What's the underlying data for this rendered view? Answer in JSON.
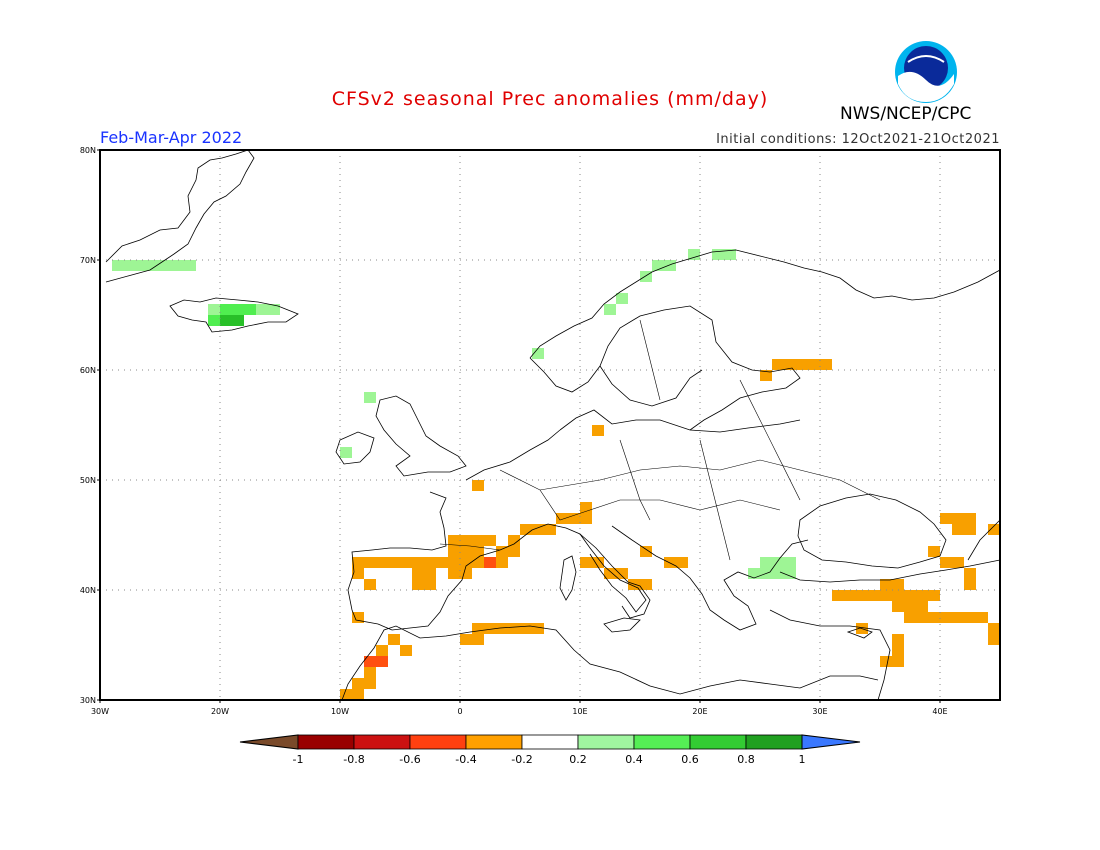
{
  "header": {
    "title": "CFSv2 seasonal Prec anomalies (mm/day)",
    "period": "Feb-Mar-Apr 2022",
    "initial_conditions": "Initial conditions: 12Oct2021-21Oct2021",
    "agency": "NWS/NCEP/CPC",
    "logo_text": "NOAA"
  },
  "map": {
    "lon_range": [
      -30,
      45
    ],
    "lat_range": [
      30,
      80
    ],
    "lat_labels": [
      "80N",
      "70N",
      "60N",
      "50N",
      "40N",
      "30N"
    ],
    "lon_labels": [
      "30W",
      "20W",
      "10W",
      "0",
      "10E",
      "20E",
      "30E",
      "40E"
    ],
    "colors": {
      "neg_0.2": "#f8a000",
      "neg_0.4": "#ff5010",
      "neg_0.6": "#dd1515",
      "pos_0.2": "#9ef595",
      "pos_0.4": "#50ee50",
      "pos_0.6": "#28c028"
    },
    "anomaly_cells": [
      {
        "lon": -29,
        "lat": 69,
        "cls": "pos_0.2"
      },
      {
        "lon": -28,
        "lat": 69,
        "cls": "pos_0.2"
      },
      {
        "lon": -27,
        "lat": 69,
        "cls": "pos_0.2"
      },
      {
        "lon": -26,
        "lat": 69,
        "cls": "pos_0.2"
      },
      {
        "lon": -25,
        "lat": 69,
        "cls": "pos_0.2"
      },
      {
        "lon": -24,
        "lat": 69,
        "cls": "pos_0.2"
      },
      {
        "lon": -23,
        "lat": 69,
        "cls": "pos_0.2"
      },
      {
        "lon": -21,
        "lat": 64,
        "cls": "pos_0.4"
      },
      {
        "lon": -20,
        "lat": 64,
        "cls": "pos_0.6"
      },
      {
        "lon": -19,
        "lat": 64,
        "cls": "pos_0.6"
      },
      {
        "lon": -20,
        "lat": 65,
        "cls": "pos_0.4"
      },
      {
        "lon": -19,
        "lat": 65,
        "cls": "pos_0.4"
      },
      {
        "lon": -18,
        "lat": 65,
        "cls": "pos_0.4"
      },
      {
        "lon": -17,
        "lat": 65,
        "cls": "pos_0.2"
      },
      {
        "lon": -16,
        "lat": 65,
        "cls": "pos_0.2"
      },
      {
        "lon": -21,
        "lat": 65,
        "cls": "pos_0.2"
      },
      {
        "lon": 15,
        "lat": 68,
        "cls": "pos_0.2"
      },
      {
        "lon": 16,
        "lat": 69,
        "cls": "pos_0.2"
      },
      {
        "lon": 17,
        "lat": 69,
        "cls": "pos_0.2"
      },
      {
        "lon": 19,
        "lat": 70,
        "cls": "pos_0.2"
      },
      {
        "lon": 21,
        "lat": 70,
        "cls": "pos_0.2"
      },
      {
        "lon": 22,
        "lat": 70,
        "cls": "pos_0.2"
      },
      {
        "lon": 13,
        "lat": 66,
        "cls": "pos_0.2"
      },
      {
        "lon": 12,
        "lat": 65,
        "cls": "pos_0.2"
      },
      {
        "lon": 6,
        "lat": 61,
        "cls": "pos_0.2"
      },
      {
        "lon": -8,
        "lat": 57,
        "cls": "pos_0.2"
      },
      {
        "lon": -10,
        "lat": 52,
        "cls": "pos_0.2"
      },
      {
        "lon": 24,
        "lat": 41,
        "cls": "pos_0.2"
      },
      {
        "lon": 25,
        "lat": 41,
        "cls": "pos_0.2"
      },
      {
        "lon": 26,
        "lat": 41,
        "cls": "pos_0.2"
      },
      {
        "lon": 27,
        "lat": 41,
        "cls": "pos_0.2"
      },
      {
        "lon": 25,
        "lat": 42,
        "cls": "pos_0.2"
      },
      {
        "lon": 26,
        "lat": 42,
        "cls": "pos_0.2"
      },
      {
        "lon": 27,
        "lat": 42,
        "cls": "pos_0.2"
      },
      {
        "lon": 26,
        "lat": 60,
        "cls": "neg_0.2"
      },
      {
        "lon": 27,
        "lat": 60,
        "cls": "neg_0.2"
      },
      {
        "lon": 28,
        "lat": 60,
        "cls": "neg_0.2"
      },
      {
        "lon": 29,
        "lat": 60,
        "cls": "neg_0.2"
      },
      {
        "lon": 30,
        "lat": 60,
        "cls": "neg_0.2"
      },
      {
        "lon": 25,
        "lat": 59,
        "cls": "neg_0.2"
      },
      {
        "lon": 11,
        "lat": 54,
        "cls": "neg_0.2"
      },
      {
        "lon": 1,
        "lat": 49,
        "cls": "neg_0.2"
      },
      {
        "lon": -1,
        "lat": 44,
        "cls": "neg_0.2"
      },
      {
        "lon": 0,
        "lat": 44,
        "cls": "neg_0.2"
      },
      {
        "lon": 1,
        "lat": 44,
        "cls": "neg_0.2"
      },
      {
        "lon": 2,
        "lat": 44,
        "cls": "neg_0.2"
      },
      {
        "lon": 4,
        "lat": 44,
        "cls": "neg_0.2"
      },
      {
        "lon": 5,
        "lat": 45,
        "cls": "neg_0.2"
      },
      {
        "lon": 6,
        "lat": 45,
        "cls": "neg_0.2"
      },
      {
        "lon": 7,
        "lat": 45,
        "cls": "neg_0.2"
      },
      {
        "lon": 8,
        "lat": 46,
        "cls": "neg_0.2"
      },
      {
        "lon": 9,
        "lat": 46,
        "cls": "neg_0.2"
      },
      {
        "lon": 10,
        "lat": 46,
        "cls": "neg_0.2"
      },
      {
        "lon": 10,
        "lat": 47,
        "cls": "neg_0.2"
      },
      {
        "lon": -1,
        "lat": 43,
        "cls": "neg_0.2"
      },
      {
        "lon": 0,
        "lat": 43,
        "cls": "neg_0.2"
      },
      {
        "lon": 1,
        "lat": 43,
        "cls": "neg_0.2"
      },
      {
        "lon": 3,
        "lat": 43,
        "cls": "neg_0.2"
      },
      {
        "lon": 4,
        "lat": 43,
        "cls": "neg_0.2"
      },
      {
        "lon": 2,
        "lat": 42,
        "cls": "neg_0.4"
      },
      {
        "lon": -9,
        "lat": 42,
        "cls": "neg_0.2"
      },
      {
        "lon": -8,
        "lat": 42,
        "cls": "neg_0.2"
      },
      {
        "lon": -7,
        "lat": 42,
        "cls": "neg_0.2"
      },
      {
        "lon": -6,
        "lat": 42,
        "cls": "neg_0.2"
      },
      {
        "lon": -5,
        "lat": 42,
        "cls": "neg_0.2"
      },
      {
        "lon": -4,
        "lat": 42,
        "cls": "neg_0.2"
      },
      {
        "lon": -3,
        "lat": 42,
        "cls": "neg_0.2"
      },
      {
        "lon": -2,
        "lat": 42,
        "cls": "neg_0.2"
      },
      {
        "lon": -1,
        "lat": 42,
        "cls": "neg_0.2"
      },
      {
        "lon": 0,
        "lat": 42,
        "cls": "neg_0.2"
      },
      {
        "lon": 1,
        "lat": 42,
        "cls": "neg_0.2"
      },
      {
        "lon": 3,
        "lat": 42,
        "cls": "neg_0.2"
      },
      {
        "lon": -4,
        "lat": 41,
        "cls": "neg_0.2"
      },
      {
        "lon": -3,
        "lat": 41,
        "cls": "neg_0.2"
      },
      {
        "lon": -1,
        "lat": 41,
        "cls": "neg_0.2"
      },
      {
        "lon": 0,
        "lat": 41,
        "cls": "neg_0.2"
      },
      {
        "lon": -9,
        "lat": 41,
        "cls": "neg_0.2"
      },
      {
        "lon": -8,
        "lat": 40,
        "cls": "neg_0.2"
      },
      {
        "lon": -4,
        "lat": 40,
        "cls": "neg_0.2"
      },
      {
        "lon": -3,
        "lat": 40,
        "cls": "neg_0.2"
      },
      {
        "lon": -9,
        "lat": 37,
        "cls": "neg_0.2"
      },
      {
        "lon": 10,
        "lat": 42,
        "cls": "neg_0.2"
      },
      {
        "lon": 11,
        "lat": 42,
        "cls": "neg_0.2"
      },
      {
        "lon": 12,
        "lat": 41,
        "cls": "neg_0.2"
      },
      {
        "lon": 13,
        "lat": 41,
        "cls": "neg_0.2"
      },
      {
        "lon": 14,
        "lat": 40,
        "cls": "neg_0.2"
      },
      {
        "lon": 15,
        "lat": 40,
        "cls": "neg_0.2"
      },
      {
        "lon": 15,
        "lat": 43,
        "cls": "neg_0.2"
      },
      {
        "lon": 17,
        "lat": 42,
        "cls": "neg_0.2"
      },
      {
        "lon": 18,
        "lat": 42,
        "cls": "neg_0.2"
      },
      {
        "lon": 0,
        "lat": 35,
        "cls": "neg_0.2"
      },
      {
        "lon": 1,
        "lat": 35,
        "cls": "neg_0.2"
      },
      {
        "lon": 1,
        "lat": 36,
        "cls": "neg_0.2"
      },
      {
        "lon": 2,
        "lat": 36,
        "cls": "neg_0.2"
      },
      {
        "lon": 3,
        "lat": 36,
        "cls": "neg_0.2"
      },
      {
        "lon": 4,
        "lat": 36,
        "cls": "neg_0.2"
      },
      {
        "lon": 5,
        "lat": 36,
        "cls": "neg_0.2"
      },
      {
        "lon": 6,
        "lat": 36,
        "cls": "neg_0.2"
      },
      {
        "lon": -6,
        "lat": 35,
        "cls": "neg_0.2"
      },
      {
        "lon": -5,
        "lat": 34,
        "cls": "neg_0.2"
      },
      {
        "lon": -7,
        "lat": 34,
        "cls": "neg_0.2"
      },
      {
        "lon": -8,
        "lat": 33,
        "cls": "neg_0.4"
      },
      {
        "lon": -7,
        "lat": 33,
        "cls": "neg_0.4"
      },
      {
        "lon": -8,
        "lat": 32,
        "cls": "neg_0.2"
      },
      {
        "lon": -9,
        "lat": 31,
        "cls": "neg_0.2"
      },
      {
        "lon": -8,
        "lat": 31,
        "cls": "neg_0.2"
      },
      {
        "lon": -10,
        "lat": 30,
        "cls": "neg_0.2"
      },
      {
        "lon": -9,
        "lat": 30,
        "cls": "neg_0.2"
      },
      {
        "lon": 31,
        "lat": 39,
        "cls": "neg_0.2"
      },
      {
        "lon": 32,
        "lat": 39,
        "cls": "neg_0.2"
      },
      {
        "lon": 33,
        "lat": 39,
        "cls": "neg_0.2"
      },
      {
        "lon": 34,
        "lat": 39,
        "cls": "neg_0.2"
      },
      {
        "lon": 35,
        "lat": 39,
        "cls": "neg_0.2"
      },
      {
        "lon": 36,
        "lat": 39,
        "cls": "neg_0.2"
      },
      {
        "lon": 37,
        "lat": 39,
        "cls": "neg_0.2"
      },
      {
        "lon": 38,
        "lat": 39,
        "cls": "neg_0.2"
      },
      {
        "lon": 39,
        "lat": 39,
        "cls": "neg_0.2"
      },
      {
        "lon": 35,
        "lat": 40,
        "cls": "neg_0.2"
      },
      {
        "lon": 36,
        "lat": 40,
        "cls": "neg_0.2"
      },
      {
        "lon": 36,
        "lat": 38,
        "cls": "neg_0.2"
      },
      {
        "lon": 37,
        "lat": 37,
        "cls": "neg_0.2"
      },
      {
        "lon": 38,
        "lat": 37,
        "cls": "neg_0.2"
      },
      {
        "lon": 39,
        "lat": 37,
        "cls": "neg_0.2"
      },
      {
        "lon": 40,
        "lat": 37,
        "cls": "neg_0.2"
      },
      {
        "lon": 41,
        "lat": 37,
        "cls": "neg_0.2"
      },
      {
        "lon": 42,
        "lat": 37,
        "cls": "neg_0.2"
      },
      {
        "lon": 43,
        "lat": 37,
        "cls": "neg_0.2"
      },
      {
        "lon": 37,
        "lat": 38,
        "cls": "neg_0.2"
      },
      {
        "lon": 38,
        "lat": 38,
        "cls": "neg_0.2"
      },
      {
        "lon": 33,
        "lat": 36,
        "cls": "neg_0.2"
      },
      {
        "lon": 36,
        "lat": 35,
        "cls": "neg_0.2"
      },
      {
        "lon": 36,
        "lat": 34,
        "cls": "neg_0.2"
      },
      {
        "lon": 35,
        "lat": 33,
        "cls": "neg_0.2"
      },
      {
        "lon": 36,
        "lat": 33,
        "cls": "neg_0.2"
      },
      {
        "lon": 44,
        "lat": 36,
        "cls": "neg_0.2"
      },
      {
        "lon": 44,
        "lat": 35,
        "cls": "neg_0.2"
      },
      {
        "lon": 40,
        "lat": 46,
        "cls": "neg_0.2"
      },
      {
        "lon": 41,
        "lat": 46,
        "cls": "neg_0.2"
      },
      {
        "lon": 42,
        "lat": 46,
        "cls": "neg_0.2"
      },
      {
        "lon": 41,
        "lat": 45,
        "cls": "neg_0.2"
      },
      {
        "lon": 42,
        "lat": 45,
        "cls": "neg_0.2"
      },
      {
        "lon": 44,
        "lat": 45,
        "cls": "neg_0.2"
      },
      {
        "lon": 39,
        "lat": 43,
        "cls": "neg_0.2"
      },
      {
        "lon": 40,
        "lat": 42,
        "cls": "neg_0.2"
      },
      {
        "lon": 41,
        "lat": 42,
        "cls": "neg_0.2"
      },
      {
        "lon": 42,
        "lat": 41,
        "cls": "neg_0.2"
      },
      {
        "lon": 42,
        "lat": 40,
        "cls": "neg_0.2"
      }
    ]
  },
  "colorbar": {
    "labels": [
      "-1",
      "-0.8",
      "-0.6",
      "-0.4",
      "-0.2",
      "0.2",
      "0.4",
      "0.6",
      "0.8",
      "1"
    ],
    "colors": [
      "#990000",
      "#cc1111",
      "#ff4010",
      "#ffa000",
      "#ffffff",
      "#a0f5a0",
      "#55ee55",
      "#33cc33",
      "#20a020"
    ],
    "under_color": "#7a4a2a",
    "over_color": "#3a78ff"
  }
}
